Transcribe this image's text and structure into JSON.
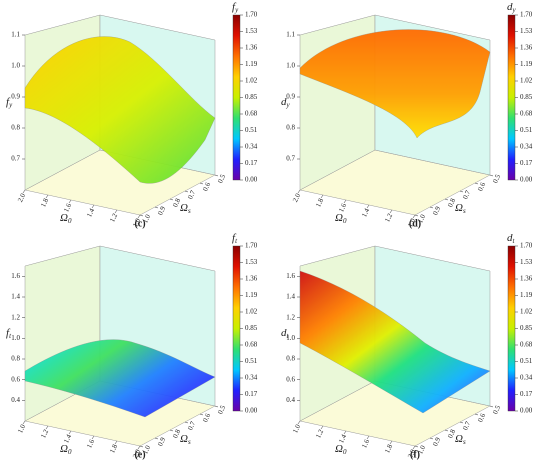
{
  "colorbar": {
    "lim": [
      0,
      1.7
    ],
    "ticks": [
      {
        "value": 0,
        "label": "0.00"
      },
      0.17,
      0.34,
      0.51,
      0.68,
      0.85,
      1.02,
      1.19,
      1.36,
      1.53,
      {
        "value": 1.7,
        "label": "1.70"
      }
    ],
    "colors": [
      "#6a00a8",
      "#2020ff",
      "#00c8ff",
      "#30e070",
      "#c8f000",
      "#ffd000",
      "#ff7000",
      "#e01000",
      "#8b0000"
    ]
  },
  "x_label": {
    "symbol": "Ω",
    "sub": "0"
  },
  "y_label": {
    "symbol": "Ω",
    "sub": "s"
  },
  "panels": [
    {
      "label": "(c)",
      "z_label": {
        "symbol": "f",
        "sub": "y"
      },
      "colorbar_label": {
        "symbol": "f",
        "sub": "y"
      },
      "zlim": [
        0.6,
        1.1
      ],
      "zticks": [
        0.7,
        0.8,
        0.9,
        {
          "value": 1,
          "label": "1.0"
        },
        1.1
      ],
      "xlim": [
        2,
        1
      ],
      "xticks": [
        {
          "value": 2,
          "label": "2.0"
        },
        1.8,
        1.6,
        1.4,
        1.2,
        {
          "value": 1,
          "label": "1.0"
        }
      ],
      "ylim": [
        1,
        0.5
      ],
      "yticks": [
        {
          "value": 1,
          "label": "1.0"
        },
        0.9,
        0.8,
        0.7,
        0.6,
        0.5
      ]
    },
    {
      "label": "(d)",
      "z_label": {
        "symbol": "d",
        "sub": "y"
      },
      "colorbar_label": {
        "symbol": "d",
        "sub": "y"
      },
      "zlim": [
        0.6,
        1.1
      ],
      "zticks": [
        0.7,
        0.8,
        0.9,
        {
          "value": 1,
          "label": "1.0"
        },
        1.1
      ],
      "xlim": [
        2,
        1
      ],
      "xticks": [
        {
          "value": 2,
          "label": "2.0"
        },
        1.8,
        1.6,
        1.4,
        1.2,
        {
          "value": 1,
          "label": "1.0"
        }
      ],
      "ylim": [
        1,
        0.5
      ],
      "yticks": [
        {
          "value": 1,
          "label": "1.0"
        },
        0.9,
        0.8,
        0.7,
        0.6,
        0.5
      ]
    },
    {
      "label": "(e)",
      "z_label": {
        "symbol": "f",
        "sub": "t"
      },
      "colorbar_label": {
        "symbol": "f",
        "sub": "t"
      },
      "zlim": [
        0.2,
        1.7
      ],
      "zticks": [
        0.4,
        0.6,
        0.8,
        {
          "value": 1,
          "label": "1.0"
        },
        1.2,
        1.4,
        1.6
      ],
      "xlim": [
        1,
        2
      ],
      "xticks": [
        {
          "value": 1,
          "label": "1.0"
        },
        1.2,
        1.4,
        1.6,
        1.8,
        {
          "value": 2,
          "label": "2.0"
        }
      ],
      "ylim": [
        1,
        0.5
      ],
      "yticks": [
        {
          "value": 1,
          "label": "1.0"
        },
        0.9,
        0.8,
        0.7,
        0.6,
        0.5
      ]
    },
    {
      "label": "(f)",
      "z_label": {
        "symbol": "d",
        "sub": "t"
      },
      "colorbar_label": {
        "symbol": "d",
        "sub": "t"
      },
      "zlim": [
        0.2,
        1.7
      ],
      "zticks": [
        0.4,
        0.6,
        0.8,
        {
          "value": 1,
          "label": "1.0"
        },
        1.2,
        1.4,
        1.6
      ],
      "xlim": [
        1,
        2
      ],
      "xticks": [
        {
          "value": 1,
          "label": "1.0"
        },
        1.2,
        1.4,
        1.6,
        1.8,
        {
          "value": 2,
          "label": "2.0"
        }
      ],
      "ylim": [
        1,
        0.5
      ],
      "yticks": [
        {
          "value": 1,
          "label": "1.0"
        },
        0.9,
        0.8,
        0.7,
        0.6,
        0.5
      ]
    }
  ]
}
